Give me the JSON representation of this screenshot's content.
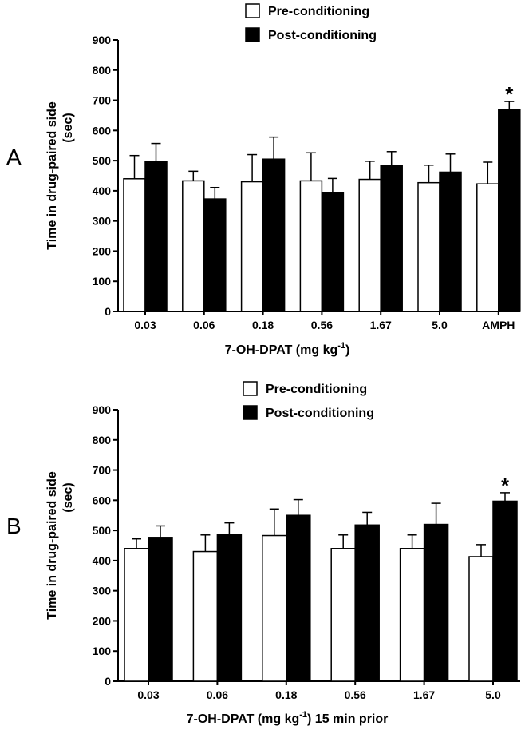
{
  "chart_data": [
    {
      "type": "bar",
      "panel_label": "A",
      "categories": [
        "0.03",
        "0.06",
        "0.18",
        "0.56",
        "1.67",
        "5.0",
        "AMPH"
      ],
      "series": [
        {
          "name": "Pre-conditioning",
          "color": "#ffffff",
          "values": [
            440,
            433,
            430,
            433,
            438,
            427,
            423
          ],
          "errors": [
            77,
            32,
            90,
            93,
            60,
            58,
            72
          ]
        },
        {
          "name": "Post-conditioning",
          "color": "#000000",
          "values": [
            497,
            373,
            505,
            395,
            485,
            462,
            668
          ],
          "errors": [
            60,
            38,
            73,
            46,
            45,
            60,
            28
          ]
        }
      ],
      "significance": [
        {
          "category": "AMPH",
          "series": "Post-conditioning",
          "label": "*"
        }
      ],
      "xlabel_main": "7-OH-DPAT (mg kg",
      "xlabel_sup": "-1",
      "xlabel_tail": ")",
      "ylabel_line1": "Time in drug-paired side",
      "ylabel_line2": "(sec)",
      "yticks": [
        "0",
        "100",
        "200",
        "300",
        "400",
        "500",
        "600",
        "700",
        "800",
        "900"
      ],
      "ylim": [
        0,
        900
      ],
      "legend_position": "top-center"
    },
    {
      "type": "bar",
      "panel_label": "B",
      "categories": [
        "0.03",
        "0.06",
        "0.18",
        "0.56",
        "1.67",
        "5.0"
      ],
      "series": [
        {
          "name": "Pre-conditioning",
          "color": "#ffffff",
          "values": [
            440,
            430,
            483,
            440,
            440,
            413
          ],
          "errors": [
            32,
            55,
            88,
            45,
            45,
            40
          ]
        },
        {
          "name": "Post-conditioning",
          "color": "#000000",
          "values": [
            477,
            487,
            550,
            518,
            520,
            597
          ],
          "errors": [
            38,
            38,
            52,
            42,
            70,
            28
          ]
        }
      ],
      "significance": [
        {
          "category": "5.0",
          "series": "Post-conditioning",
          "label": "*"
        }
      ],
      "xlabel_main": "7-OH-DPAT (mg kg",
      "xlabel_sup": "-1",
      "xlabel_tail": ") 15 min  prior",
      "ylabel_line1": "Time in drug-paired side",
      "ylabel_line2": "(sec)",
      "yticks": [
        "0",
        "100",
        "200",
        "300",
        "400",
        "500",
        "600",
        "700",
        "800",
        "900"
      ],
      "ylim": [
        0,
        900
      ],
      "legend_position": "top-center"
    }
  ]
}
